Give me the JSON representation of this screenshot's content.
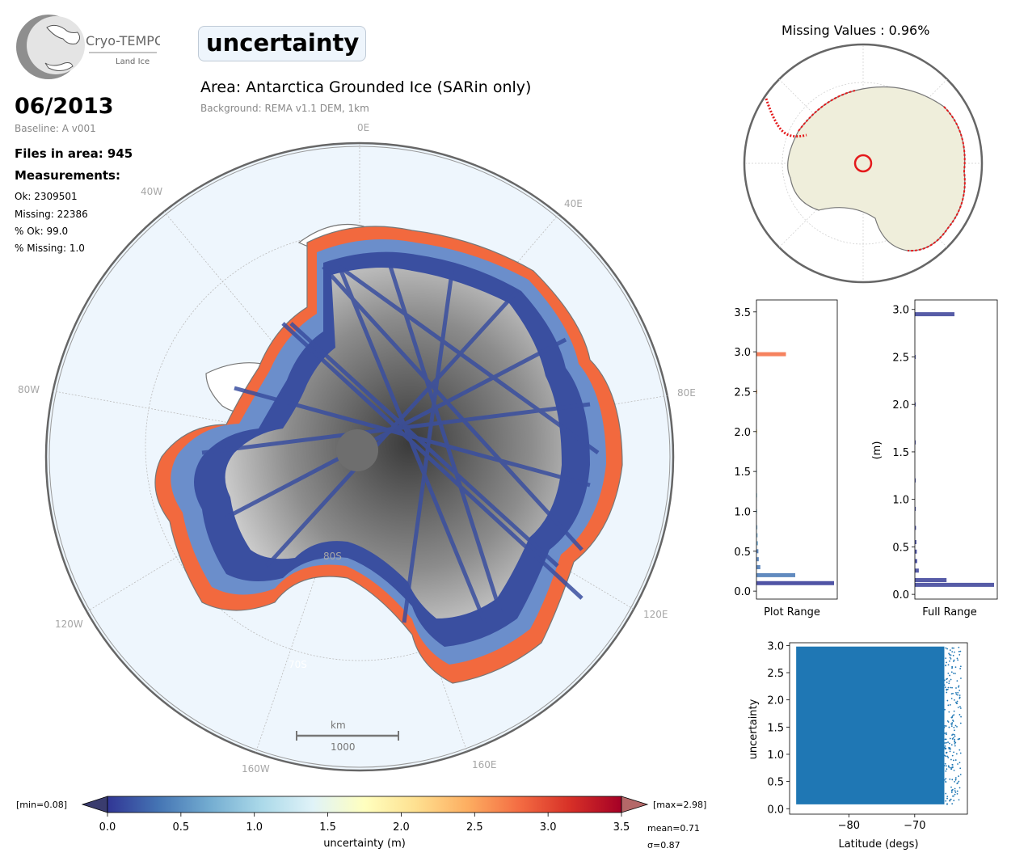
{
  "logo": {
    "name": "Cryo-TEMPO",
    "sub": "Land Ice"
  },
  "header": {
    "parameter": "uncertainty",
    "area": "Area: Antarctica Grounded Ice (SARin only)",
    "background": "Background: REMA v1.1 DEM, 1km"
  },
  "info": {
    "date": "06/2013",
    "baseline": "Baseline: A v001",
    "files": "Files in area: 945",
    "measurements_title": "Measurements:",
    "ok": "Ok: 2309501",
    "missing": "Missing: 22386",
    "pct_ok": "% Ok: 99.0",
    "pct_missing": "% Missing: 1.0"
  },
  "map": {
    "lon_labels": [
      "0E",
      "40E",
      "80E",
      "120E",
      "160E",
      "160W",
      "120W",
      "80W",
      "40W"
    ],
    "lat_labels": [
      "80S",
      "70S"
    ],
    "scalebar_unit": "km",
    "scalebar_value": "1000",
    "ocean_color": "#eef6fd",
    "track_color": "#3a4fa0"
  },
  "colorbar": {
    "label": "uncertainty (m)",
    "ticks": [
      "0.0",
      "0.5",
      "1.0",
      "1.5",
      "2.0",
      "2.5",
      "3.0",
      "3.5"
    ],
    "min_label": "[min=0.08]",
    "max_label": "[max=2.98]",
    "mean_label": "mean=0.71",
    "sigma_label": "σ=0.87",
    "colors": [
      "#313695",
      "#4575b4",
      "#74add1",
      "#abd9e9",
      "#e0f3f8",
      "#ffffbf",
      "#fee090",
      "#fdae61",
      "#f46d43",
      "#d73027",
      "#a50026"
    ]
  },
  "inset_map": {
    "title": "Missing Values : 0.96%"
  },
  "chart_data": [
    {
      "type": "bar",
      "orientation": "horizontal",
      "xlabel": "Plot Range",
      "ylabel": "",
      "ylim": [
        -0.1,
        3.65
      ],
      "yticks": [
        "0.0",
        "0.5",
        "1.0",
        "1.5",
        "2.0",
        "2.5",
        "3.0",
        "3.5"
      ],
      "bin_centers": [
        0.1,
        0.2,
        0.3,
        0.4,
        0.5,
        0.6,
        0.7,
        0.8,
        1.0,
        1.2,
        1.5,
        2.0,
        2.5,
        2.97
      ],
      "values": [
        1.0,
        0.5,
        0.05,
        0.03,
        0.025,
        0.02,
        0.015,
        0.012,
        0.01,
        0.008,
        0.006,
        0.004,
        0.004,
        0.38
      ]
    },
    {
      "type": "bar",
      "orientation": "horizontal",
      "xlabel": "Full Range",
      "ylabel": "(m)",
      "ylim": [
        -0.05,
        3.1
      ],
      "yticks": [
        "0.0",
        "0.5",
        "1.0",
        "1.5",
        "2.0",
        "2.5",
        "3.0"
      ],
      "bin_centers": [
        0.1,
        0.15,
        0.25,
        0.35,
        0.45,
        0.55,
        0.7,
        0.9,
        1.2,
        1.6,
        2.0,
        2.5,
        2.95
      ],
      "values": [
        1.0,
        0.4,
        0.05,
        0.03,
        0.025,
        0.02,
        0.015,
        0.012,
        0.01,
        0.008,
        0.006,
        0.004,
        0.5
      ]
    },
    {
      "type": "scatter",
      "xlabel": "Latitude (degs)",
      "ylabel": "uncertainty",
      "xlim": [
        -89,
        -62
      ],
      "ylim": [
        -0.1,
        3.05
      ],
      "xticks": [
        "−80",
        "−70"
      ],
      "yticks": [
        "0.0",
        "0.5",
        "1.0",
        "1.5",
        "2.0",
        "2.5",
        "3.0"
      ],
      "dense_block": {
        "x": [
          -88.0,
          -65.5
        ],
        "y": [
          0.08,
          2.98
        ]
      },
      "color": "#1f77b4"
    }
  ]
}
